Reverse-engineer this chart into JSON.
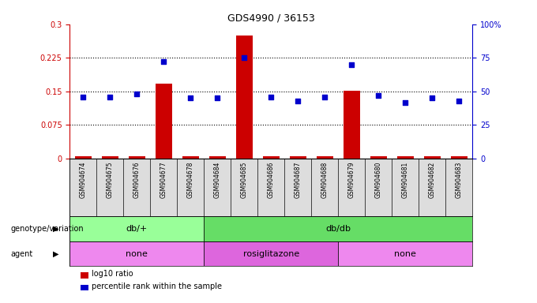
{
  "title": "GDS4990 / 36153",
  "samples": [
    "GSM904674",
    "GSM904675",
    "GSM904676",
    "GSM904677",
    "GSM904678",
    "GSM904684",
    "GSM904685",
    "GSM904686",
    "GSM904687",
    "GSM904688",
    "GSM904679",
    "GSM904680",
    "GSM904681",
    "GSM904682",
    "GSM904683"
  ],
  "log10_ratio": [
    0.005,
    0.005,
    0.005,
    0.168,
    0.005,
    0.005,
    0.275,
    0.005,
    0.005,
    0.005,
    0.152,
    0.005,
    0.005,
    0.005,
    0.005
  ],
  "percentile_rank": [
    46,
    46,
    48,
    72,
    45,
    45,
    75,
    46,
    43,
    46,
    70,
    47,
    42,
    45,
    43
  ],
  "ylim_left": [
    0,
    0.3
  ],
  "ylim_right": [
    0,
    100
  ],
  "yticks_left": [
    0,
    0.075,
    0.15,
    0.225,
    0.3
  ],
  "yticks_right": [
    0,
    25,
    50,
    75,
    100
  ],
  "ytick_labels_left": [
    "0",
    "0.075",
    "0.15",
    "0.225",
    "0.3"
  ],
  "ytick_labels_right": [
    "0",
    "25",
    "50",
    "75",
    "100%"
  ],
  "bar_color": "#cc0000",
  "dot_color": "#0000cc",
  "genotype_groups": [
    {
      "label": "db/+",
      "start": 0,
      "end": 4,
      "color": "#99ff99"
    },
    {
      "label": "db/db",
      "start": 5,
      "end": 14,
      "color": "#66dd66"
    }
  ],
  "agent_groups": [
    {
      "label": "none",
      "start": 0,
      "end": 4,
      "color": "#ee88ee"
    },
    {
      "label": "rosiglitazone",
      "start": 5,
      "end": 9,
      "color": "#dd66dd"
    },
    {
      "label": "none",
      "start": 10,
      "end": 14,
      "color": "#ee88ee"
    }
  ],
  "genotype_label": "genotype/variation",
  "agent_label": "agent",
  "legend_items": [
    {
      "label": "log10 ratio",
      "color": "#cc0000"
    },
    {
      "label": "percentile rank within the sample",
      "color": "#0000cc"
    }
  ],
  "background_color": "#ffffff",
  "plot_bg_color": "#ffffff",
  "grid_color": "#000000",
  "tick_area_color": "#dddddd"
}
